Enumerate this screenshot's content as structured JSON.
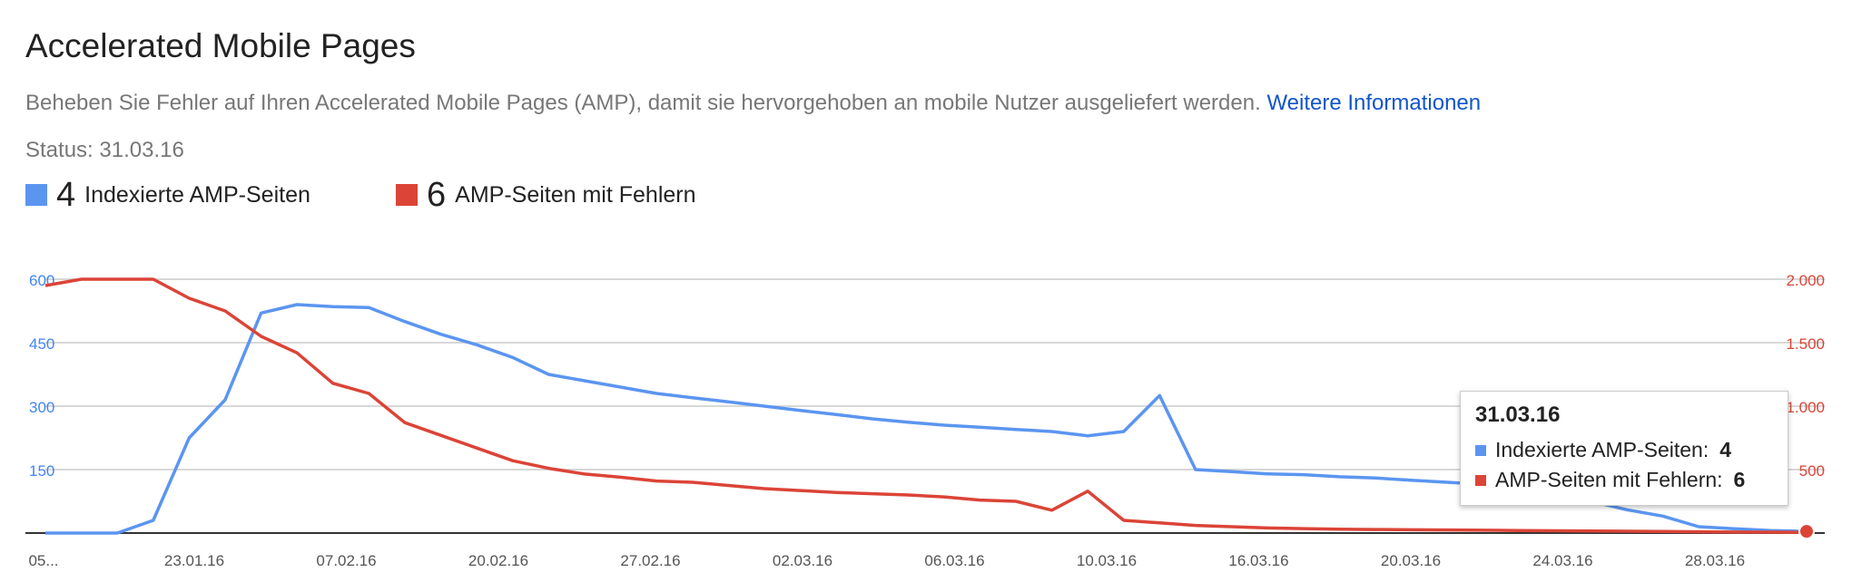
{
  "header": {
    "title": "Accelerated Mobile Pages",
    "description": "Beheben Sie Fehler auf Ihren Accelerated Mobile Pages (AMP), damit sie hervorgehoben an mobile Nutzer ausgeliefert werden.",
    "more_link": "Weitere Informationen",
    "status": "Status: 31.03.16"
  },
  "legend": [
    {
      "count": "4",
      "label": "Indexierte AMP-Seiten",
      "color": "#5b95f0"
    },
    {
      "count": "6",
      "label": "AMP-Seiten mit Fehlern",
      "color": "#db4437"
    }
  ],
  "tooltip": {
    "date": "31.03.16",
    "rows": [
      {
        "label": "Indexierte AMP-Seiten:",
        "value": "4"
      },
      {
        "label": "AMP-Seiten mit Fehlern:",
        "value": "6"
      }
    ]
  },
  "chart_data": {
    "type": "line",
    "x_tick_labels": [
      "05...",
      "23.01.16",
      "07.02.16",
      "20.02.16",
      "27.02.16",
      "02.03.16",
      "06.03.16",
      "10.03.16",
      "16.03.16",
      "20.03.16",
      "24.03.16",
      "28.03.16"
    ],
    "y_left": {
      "ticks": [
        "600",
        "450",
        "300",
        "150"
      ],
      "ylim": [
        0,
        600
      ],
      "color": "#4285f4"
    },
    "y_right": {
      "ticks": [
        "2.000",
        "1.500",
        "1.000",
        "500"
      ],
      "ylim": [
        0,
        2000
      ],
      "color": "#db4437"
    },
    "grid": true,
    "series": [
      {
        "name": "Indexierte AMP-Seiten",
        "axis": "left",
        "color": "#5b95f0",
        "values": [
          0,
          0,
          0,
          30,
          225,
          315,
          520,
          540,
          535,
          533,
          500,
          470,
          445,
          415,
          375,
          360,
          345,
          330,
          320,
          310,
          300,
          290,
          280,
          270,
          262,
          255,
          250,
          245,
          240,
          230,
          240,
          325,
          150,
          145,
          140,
          138,
          133,
          130,
          125,
          120,
          115,
          105,
          90,
          75,
          55,
          40,
          15,
          10,
          6,
          4
        ]
      },
      {
        "name": "AMP-Seiten mit Fehlern",
        "axis": "right",
        "color": "#db4437",
        "values": [
          1950,
          2000,
          2000,
          2000,
          1850,
          1750,
          1550,
          1420,
          1180,
          1100,
          870,
          770,
          670,
          570,
          510,
          465,
          440,
          410,
          400,
          375,
          350,
          335,
          320,
          310,
          300,
          285,
          260,
          250,
          180,
          330,
          100,
          80,
          60,
          50,
          40,
          35,
          30,
          28,
          26,
          24,
          22,
          20,
          18,
          16,
          14,
          12,
          10,
          8,
          7,
          6
        ]
      }
    ]
  }
}
